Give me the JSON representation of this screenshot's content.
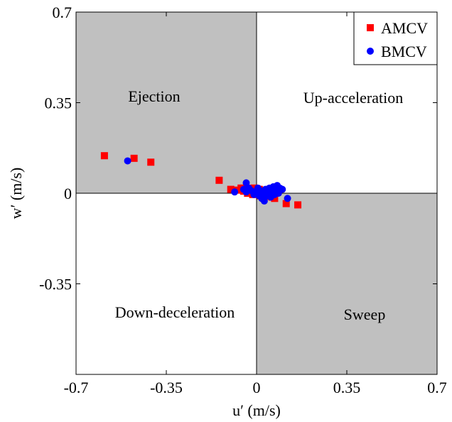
{
  "chart_data": {
    "type": "scatter",
    "title": "",
    "xlabel": "u′ (m/s)",
    "ylabel": "w′ (m/s)",
    "xlim": [
      -0.7,
      0.7
    ],
    "ylim": [
      -0.7,
      0.7
    ],
    "xticks": [
      -0.7,
      -0.35,
      0,
      0.35,
      0.7
    ],
    "yticks": [
      -0.35,
      0,
      0.35,
      0.7
    ],
    "xtick_labels": [
      "-0.7",
      "-0.35",
      "0",
      "0.35",
      "0.7"
    ],
    "ytick_labels": [
      "-0.35",
      "0",
      "0.35",
      "0.7"
    ],
    "grid": false,
    "legend_position": "top-right",
    "quadrants": [
      {
        "label": "Ejection",
        "shaded": true
      },
      {
        "label": "Up-acceleration",
        "shaded": false
      },
      {
        "label": "Down-deceleration",
        "shaded": false
      },
      {
        "label": "Sweep",
        "shaded": true
      }
    ],
    "shade_color": "#c0c0c0",
    "series": [
      {
        "name": "AMCV",
        "marker": "square",
        "color": "#ff0000",
        "points": [
          [
            -0.59,
            0.145
          ],
          [
            -0.475,
            0.135
          ],
          [
            -0.41,
            0.12
          ],
          [
            -0.145,
            0.05
          ],
          [
            -0.1,
            0.015
          ],
          [
            -0.075,
            0.012
          ],
          [
            -0.06,
            0.02
          ],
          [
            -0.05,
            0.008
          ],
          [
            -0.04,
            0.015
          ],
          [
            -0.035,
            0.0
          ],
          [
            -0.03,
            0.01
          ],
          [
            -0.025,
            0.018
          ],
          [
            -0.02,
            0.005
          ],
          [
            -0.015,
            -0.005
          ],
          [
            -0.01,
            0.02
          ],
          [
            -0.005,
            0.01
          ],
          [
            0.0,
            0.018
          ],
          [
            0.005,
            0.0
          ],
          [
            0.01,
            0.015
          ],
          [
            0.015,
            -0.01
          ],
          [
            0.02,
            0.012
          ],
          [
            0.025,
            -0.005
          ],
          [
            0.03,
            0.005
          ],
          [
            0.035,
            -0.012
          ],
          [
            0.04,
            0.0
          ],
          [
            0.05,
            -0.008
          ],
          [
            0.06,
            -0.015
          ],
          [
            0.07,
            -0.02
          ],
          [
            0.115,
            -0.04
          ],
          [
            0.16,
            -0.045
          ]
        ]
      },
      {
        "name": "BMCV",
        "marker": "circle",
        "color": "#0000ff",
        "points": [
          [
            -0.5,
            0.125
          ],
          [
            -0.085,
            0.005
          ],
          [
            -0.05,
            0.015
          ],
          [
            -0.04,
            0.005
          ],
          [
            -0.04,
            0.04
          ],
          [
            -0.03,
            0.02
          ],
          [
            -0.02,
            0.01
          ],
          [
            -0.01,
            -0.005
          ],
          [
            0.0,
            0.005
          ],
          [
            0.005,
            0.02
          ],
          [
            0.01,
            -0.01
          ],
          [
            0.015,
            0.01
          ],
          [
            0.02,
            -0.02
          ],
          [
            0.025,
            0.005
          ],
          [
            0.03,
            -0.03
          ],
          [
            0.035,
            0.015
          ],
          [
            0.04,
            -0.01
          ],
          [
            0.045,
            0.0
          ],
          [
            0.05,
            0.02
          ],
          [
            0.055,
            -0.015
          ],
          [
            0.06,
            0.01
          ],
          [
            0.065,
            0.025
          ],
          [
            0.07,
            -0.005
          ],
          [
            0.075,
            0.018
          ],
          [
            0.08,
            0.03
          ],
          [
            0.085,
            0.0
          ],
          [
            0.09,
            0.02
          ],
          [
            0.1,
            0.015
          ],
          [
            0.12,
            -0.02
          ]
        ]
      }
    ]
  }
}
